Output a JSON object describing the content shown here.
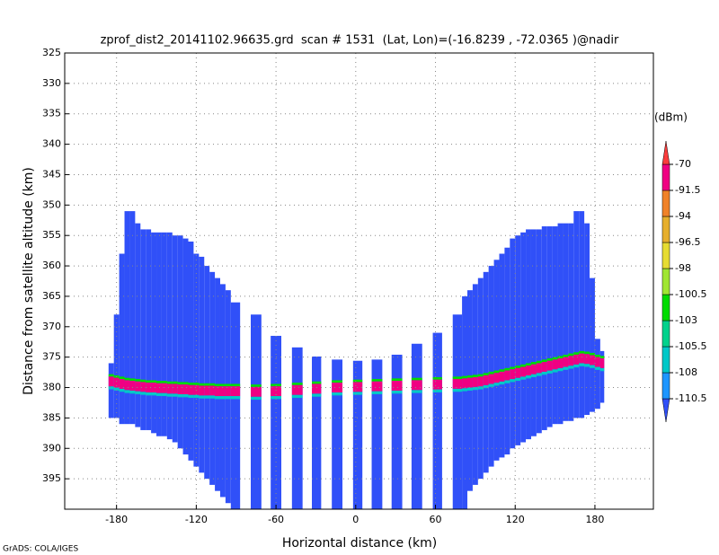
{
  "chart_data": {
    "type": "shaded",
    "title": "zprof_dist2_20141102.96635.grd  scan # 1531  (Lat, Lon)=(-16.8239 , -72.0365 )@nadir",
    "xlabel": "Horizontal distance (km)",
    "ylabel": "Distance from satellite altitude (km)",
    "footer": "GrADS: COLA/IGES",
    "xlim": [
      -219,
      224
    ],
    "ylim": [
      325,
      400
    ],
    "y_reversed": true,
    "grid": true,
    "xticks": [
      -180,
      -120,
      -60,
      0,
      60,
      120,
      180
    ],
    "yticks": [
      325,
      330,
      335,
      340,
      345,
      350,
      355,
      360,
      365,
      370,
      375,
      380,
      385,
      390,
      395
    ],
    "colorbar": {
      "unit": "(dBm)",
      "levels": [
        -110.5,
        -108,
        -105.5,
        -103,
        -100.5,
        -98,
        -96.5,
        -94,
        -91.5,
        -70
      ],
      "colors": [
        "#3050f8",
        "#1e96ff",
        "#00c8c8",
        "#00d28c",
        "#00dc00",
        "#a0e632",
        "#e6dc32",
        "#e6af2d",
        "#f08228",
        "#f00082",
        "#fa3c3c"
      ]
    },
    "field": {
      "background_value": -115,
      "surface_value": -85,
      "x0": [
        -186,
        -182,
        -178,
        -174,
        -170,
        -166,
        -162,
        -158,
        -154,
        -150,
        -146,
        -142,
        -138,
        -134,
        -130,
        -126,
        -122,
        -118,
        -114,
        -110,
        -106,
        -102,
        -98,
        -94,
        -79,
        -64,
        -48,
        -33,
        -18,
        -2,
        12,
        27,
        42,
        58,
        73,
        80,
        84,
        88,
        92,
        96,
        100,
        104,
        108,
        112,
        116,
        120,
        124,
        128,
        132,
        136,
        140,
        144,
        148,
        152,
        156,
        160,
        164,
        168,
        172,
        176,
        180,
        184
      ],
      "x1": [
        -182,
        -178,
        -174,
        -170,
        -166,
        -162,
        -158,
        -154,
        -150,
        -146,
        -142,
        -138,
        -134,
        -130,
        -126,
        -122,
        -118,
        -114,
        -110,
        -106,
        -102,
        -98,
        -94,
        -87,
        -71,
        -56,
        -40,
        -26,
        -10,
        5,
        20,
        35,
        50,
        65,
        80,
        84,
        88,
        92,
        96,
        100,
        104,
        108,
        112,
        116,
        120,
        124,
        128,
        132,
        136,
        140,
        144,
        148,
        152,
        156,
        160,
        164,
        168,
        172,
        176,
        180,
        184,
        187
      ],
      "top": [
        376,
        368,
        358,
        351,
        351,
        353,
        354,
        354,
        354.5,
        354.5,
        354.5,
        354.5,
        355,
        355,
        355.5,
        356,
        358,
        358.5,
        360,
        361,
        362,
        363,
        364,
        366,
        368,
        371.5,
        373.4,
        374.9,
        375.4,
        375.6,
        375.4,
        374.6,
        372.8,
        371,
        368,
        365,
        364,
        363,
        362,
        361,
        360,
        359,
        358,
        357,
        355.5,
        355,
        354.5,
        354,
        354,
        354,
        353.5,
        353.5,
        353.5,
        353,
        353,
        353,
        351,
        351,
        353,
        362,
        372,
        374
      ],
      "bottom": [
        385,
        385,
        386,
        386,
        386,
        386.5,
        387,
        387,
        387.5,
        388,
        388,
        388.5,
        389,
        390,
        391,
        392,
        393,
        394,
        395,
        396,
        397,
        398,
        399,
        400,
        400,
        400,
        400,
        400,
        400,
        400,
        400,
        400,
        400,
        400,
        400,
        400,
        397,
        396,
        395,
        394,
        393,
        392,
        391.5,
        391,
        390,
        389.5,
        389,
        388.5,
        388,
        387.5,
        387,
        386.5,
        386,
        386,
        385.5,
        385.5,
        385,
        385,
        384.5,
        384,
        383.5,
        382.5
      ],
      "surface": [
        379,
        379.2,
        379.4,
        379.6,
        379.7,
        379.8,
        379.9,
        380,
        380,
        380.1,
        380.1,
        380.2,
        380.2,
        380.3,
        380.3,
        380.4,
        380.4,
        380.5,
        380.5,
        380.5,
        380.6,
        380.6,
        380.6,
        380.6,
        380.7,
        380.6,
        380.4,
        380.2,
        380,
        379.9,
        379.8,
        379.7,
        379.6,
        379.5,
        379.4,
        379.3,
        379.2,
        379.1,
        379,
        378.8,
        378.6,
        378.4,
        378.2,
        378,
        377.8,
        377.6,
        377.4,
        377.2,
        377,
        376.8,
        376.6,
        376.4,
        376.2,
        376,
        375.8,
        375.6,
        375.4,
        375.2,
        375.3,
        375.5,
        375.8,
        376
      ]
    }
  }
}
